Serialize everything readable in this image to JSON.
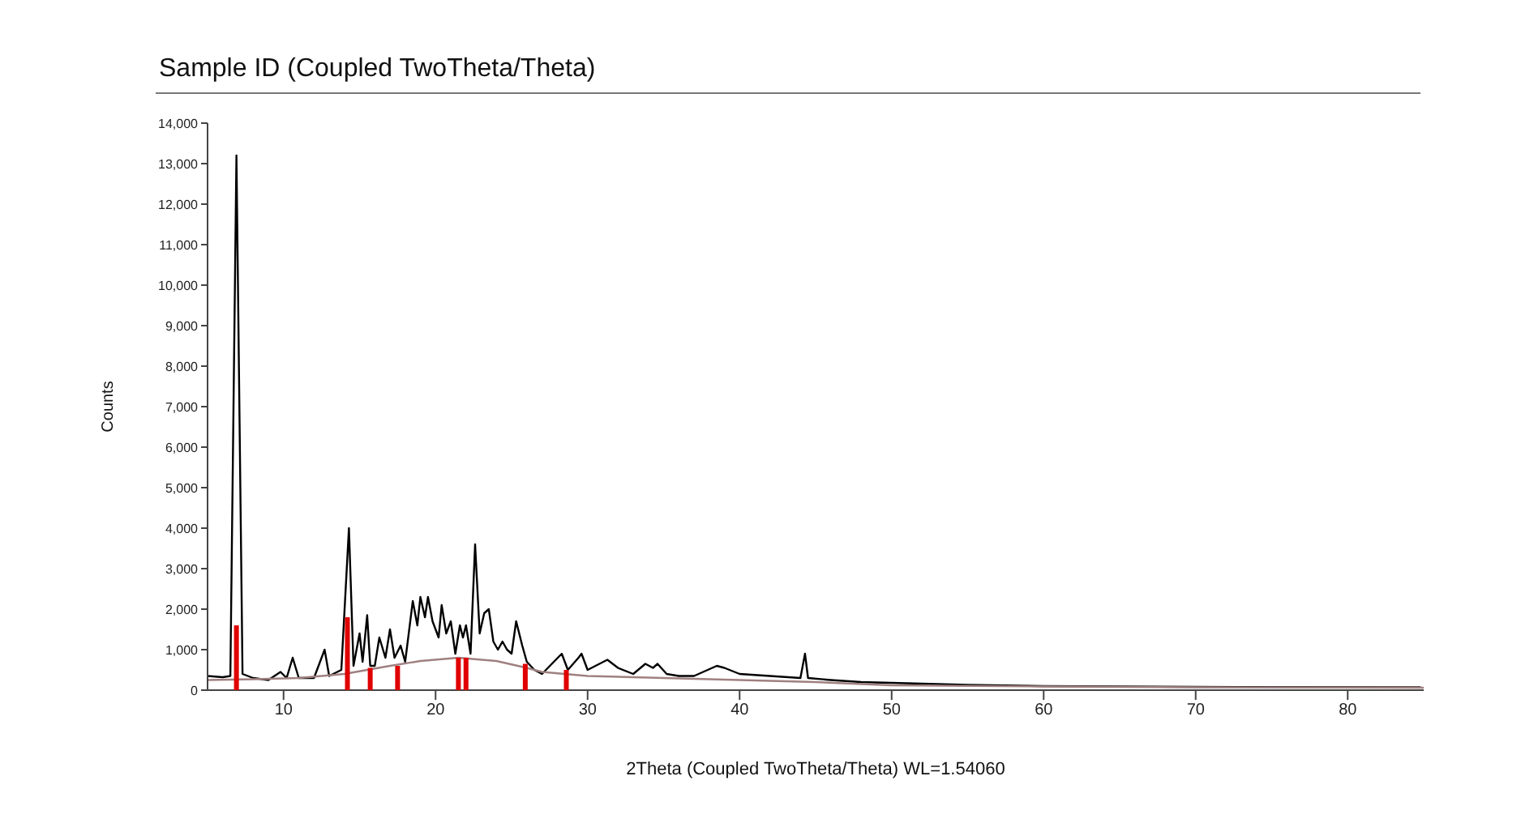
{
  "chart_data": {
    "type": "line",
    "title": "Sample ID (Coupled TwoTheta/Theta)",
    "xlabel": "2Theta (Coupled TwoTheta/Theta) WL=1.54060",
    "ylabel": "Counts",
    "xlim": [
      5,
      85
    ],
    "xticks": [
      10,
      20,
      30,
      40,
      50,
      60,
      70,
      80
    ],
    "ylim": [
      0,
      14000
    ],
    "yticks": [
      {
        "value": 0,
        "label": "0"
      },
      {
        "value": 1000,
        "label": "1,000"
      },
      {
        "value": 2000,
        "label": "2,000"
      },
      {
        "value": 3000,
        "label": "3,000"
      },
      {
        "value": 4000,
        "label": "4,000"
      },
      {
        "value": 5000,
        "label": "5,000"
      },
      {
        "value": 6000,
        "label": "6,000"
      },
      {
        "value": 7000,
        "label": "7,000"
      },
      {
        "value": 8000,
        "label": "8,000"
      },
      {
        "value": 9000,
        "label": "9,000"
      },
      {
        "value": 10000,
        "label": "10,000"
      },
      {
        "value": 11000,
        "label": "11,000"
      },
      {
        "value": 12000,
        "label": "12,000"
      },
      {
        "value": 13000,
        "label": "13,000"
      },
      {
        "value": 14000,
        "label": "14,000"
      }
    ],
    "grid": false,
    "marker": "none",
    "series": [
      {
        "color": "#000000",
        "x": [
          5,
          6,
          6.5,
          6.9,
          7.3,
          8,
          9,
          9.8,
          10.2,
          10.6,
          11,
          12,
          12.7,
          13,
          13.8,
          14.3,
          14.6,
          15,
          15.2,
          15.5,
          15.7,
          16,
          16.3,
          16.7,
          17,
          17.3,
          17.7,
          18,
          18.5,
          18.8,
          19,
          19.3,
          19.5,
          19.8,
          20.2,
          20.4,
          20.7,
          21,
          21.3,
          21.6,
          21.8,
          22,
          22.3,
          22.6,
          22.9,
          23.2,
          23.5,
          23.8,
          24.1,
          24.4,
          24.7,
          25,
          25.3,
          25.7,
          26,
          26.5,
          27,
          28.3,
          28.7,
          29.4,
          29.6,
          30,
          31.3,
          32,
          33,
          33.8,
          34.3,
          34.6,
          35.2,
          36,
          37,
          38.5,
          39,
          40,
          42,
          44,
          44.3,
          44.5,
          46,
          48,
          50,
          55,
          60,
          70,
          84.8
        ],
        "values": [
          350,
          320,
          350,
          13200,
          400,
          300,
          250,
          450,
          300,
          800,
          300,
          300,
          1000,
          350,
          500,
          4000,
          600,
          1400,
          700,
          1850,
          600,
          600,
          1300,
          800,
          1500,
          800,
          1100,
          700,
          2200,
          1600,
          2300,
          1800,
          2300,
          1700,
          1300,
          2100,
          1400,
          1700,
          900,
          1600,
          1300,
          1600,
          900,
          3600,
          1400,
          1900,
          2000,
          1200,
          1000,
          1200,
          1000,
          900,
          1700,
          1100,
          700,
          500,
          400,
          900,
          500,
          800,
          900,
          500,
          750,
          550,
          400,
          650,
          550,
          650,
          400,
          350,
          350,
          600,
          550,
          400,
          350,
          300,
          900,
          300,
          250,
          200,
          180,
          130,
          100,
          80,
          70
        ]
      },
      {
        "type": "line",
        "color": "#a08080",
        "x": [
          5,
          8,
          11,
          14,
          17,
          19,
          21.5,
          24,
          26,
          27,
          30,
          35,
          40,
          45,
          50,
          60,
          70,
          85
        ],
        "values": [
          250,
          270,
          300,
          400,
          600,
          720,
          800,
          720,
          550,
          450,
          350,
          300,
          250,
          200,
          120,
          90,
          70,
          60
        ]
      },
      {
        "type": "bar",
        "color": "#e00000",
        "x": [
          6.9,
          14.2,
          15.7,
          17.5,
          21.5,
          22,
          25.9,
          28.6
        ],
        "values": [
          1600,
          1800,
          550,
          600,
          800,
          800,
          650,
          500
        ]
      }
    ]
  }
}
